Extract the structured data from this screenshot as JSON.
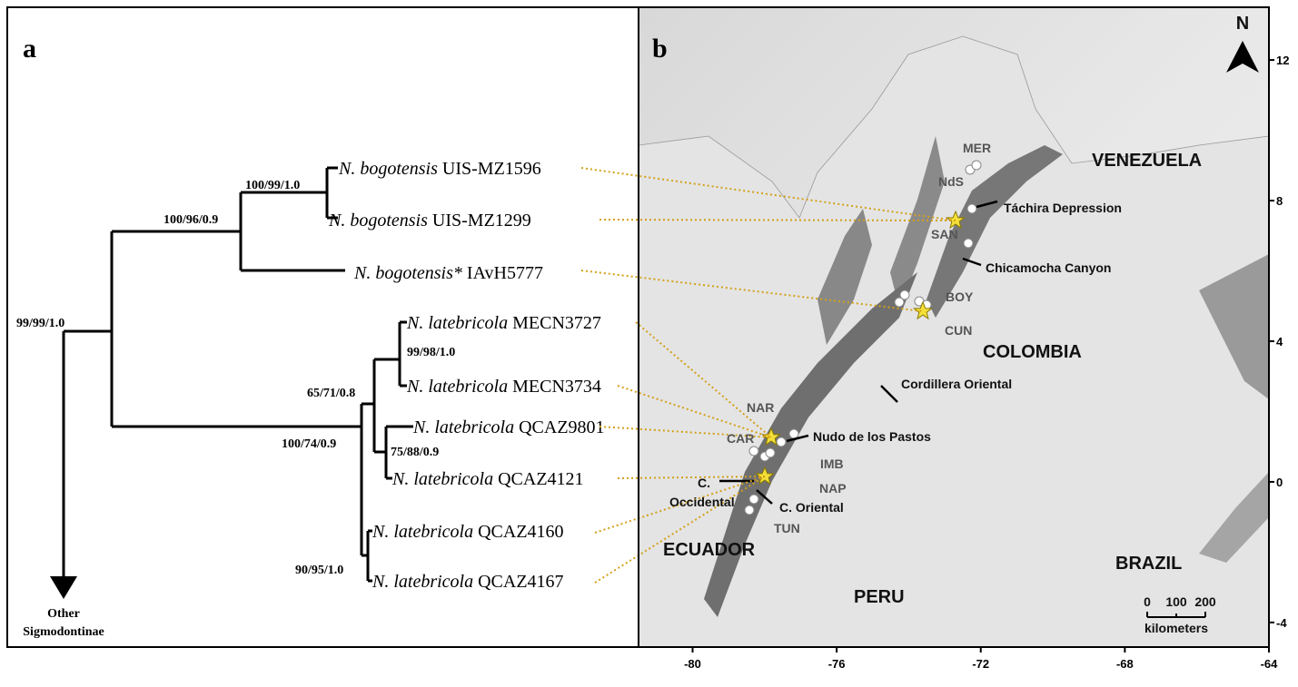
{
  "panel_a": {
    "letter": "a",
    "taxa": [
      {
        "species": "N. bogotensis",
        "voucher": "UIS-MZ1596"
      },
      {
        "species": "N. bogotensis",
        "voucher": "UIS-MZ1299"
      },
      {
        "species": "N. bogotensis*",
        "voucher": "IAvH5777"
      },
      {
        "species": "N. latebricola",
        "voucher": "MECN3727"
      },
      {
        "species": "N. latebricola",
        "voucher": "MECN3734"
      },
      {
        "species": "N. latebricola",
        "voucher": "QCAZ9801"
      },
      {
        "species": "N. latebricola",
        "voucher": "QCAZ4121"
      },
      {
        "species": "N. latebricola",
        "voucher": "QCAZ4160"
      },
      {
        "species": "N. latebricola",
        "voucher": "QCAZ4167"
      }
    ],
    "supports": [
      "100/99/1.0",
      "100/96/0.9",
      "99/99/1.0",
      "99/98/1.0",
      "65/71/0.8",
      "100/74/0.9",
      "75/88/0.9",
      "90/95/1.0"
    ],
    "outgroup": [
      "Other",
      "Sigmodontinae"
    ]
  },
  "panel_b": {
    "letter": "b",
    "north": "N",
    "labels": [
      "MER",
      "NdS",
      "VENEZUELA",
      "Táchira Depression",
      "SAN",
      "Chicamocha Canyon",
      "BOY",
      "CUN",
      "COLOMBIA",
      "Cordillera Oriental",
      "NAR",
      "CAR",
      "Nudo de los Pastos",
      "IMB",
      "C.",
      "Occidental",
      "NAP",
      "C. Oriental",
      "TUN",
      "ECUADOR",
      "PERU",
      "BRAZIL"
    ],
    "scale": {
      "ticks": [
        "0",
        "100",
        "200"
      ],
      "unit": "kilometers"
    },
    "xlim": [
      -81.5,
      -64
    ],
    "ylim": [
      -4.7,
      13.5
    ],
    "xticks": [
      -80,
      -76,
      -72,
      -68,
      -64
    ],
    "yticks": [
      -4,
      0,
      4,
      8,
      12
    ]
  }
}
